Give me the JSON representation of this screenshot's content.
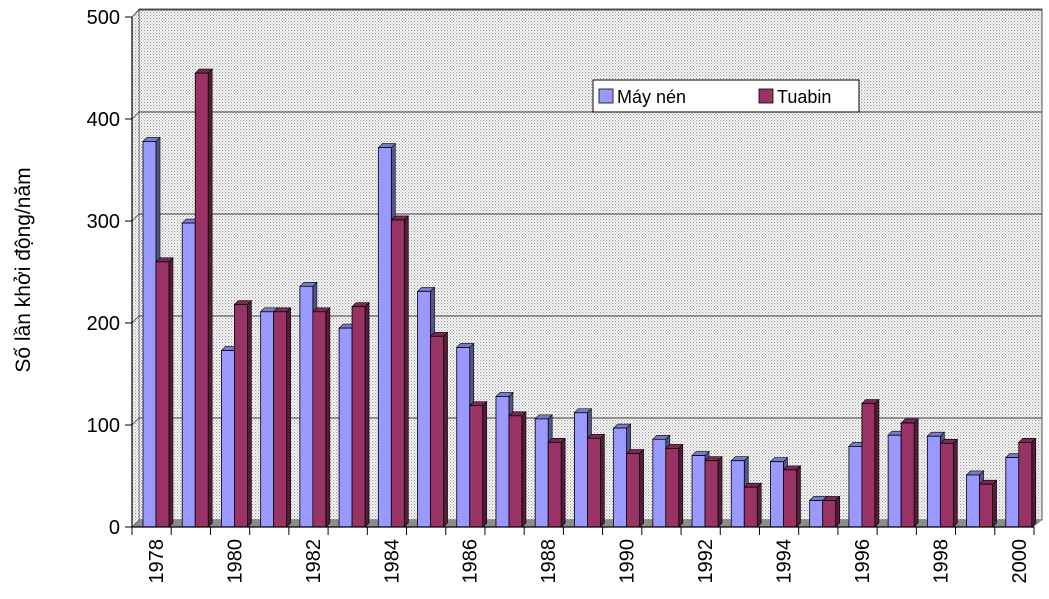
{
  "chart_data": {
    "type": "bar",
    "style": "3d-clustered",
    "ylabel": "Số lần khởi động/năm",
    "ylim": [
      0,
      500
    ],
    "yticks": [
      0,
      100,
      200,
      300,
      400,
      500
    ],
    "grid": true,
    "legend_position": "top-right",
    "x_tick_labels": [
      "1978",
      "1980",
      "1982",
      "1984",
      "1986",
      "1988",
      "1990",
      "1992",
      "1994",
      "1996",
      "1998",
      "2000"
    ],
    "categories": [
      "1978",
      "1979",
      "1980",
      "1981",
      "1982",
      "1983",
      "1984",
      "1985",
      "1986",
      "1987",
      "1988",
      "1989",
      "1990",
      "1991",
      "1992",
      "1993",
      "1994",
      "1995",
      "1996",
      "1997",
      "1998",
      "1999",
      "2000"
    ],
    "series": [
      {
        "name": "Máy nén",
        "color": "#9999ff",
        "values": [
          378,
          298,
          173,
          211,
          236,
          195,
          372,
          231,
          176,
          128,
          106,
          112,
          97,
          86,
          70,
          65,
          64,
          26,
          79,
          90,
          89,
          51,
          68
        ]
      },
      {
        "name": "Tuabin",
        "color": "#993366",
        "values": [
          260,
          445,
          218,
          211,
          211,
          216,
          301,
          187,
          119,
          109,
          83,
          87,
          72,
          77,
          65,
          39,
          56,
          26,
          121,
          102,
          82,
          42,
          83
        ]
      }
    ]
  }
}
